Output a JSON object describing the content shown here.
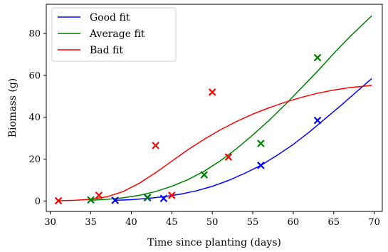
{
  "chart_data": {
    "type": "scatter",
    "title": "",
    "xlabel": "Time since planting (days)",
    "ylabel": "Biomass (g)",
    "xlim": [
      29.5,
      71
    ],
    "ylim": [
      -5,
      94
    ],
    "x_ticks": [
      30,
      35,
      40,
      45,
      50,
      55,
      60,
      65,
      70
    ],
    "y_ticks": [
      0,
      20,
      40,
      60,
      80
    ],
    "grid": false,
    "legend_position": "top-left",
    "series": [
      {
        "name": "Good fit",
        "color": "#0000ff",
        "curve": {
          "x": [
            38,
            40,
            42,
            44,
            46,
            48,
            50,
            52,
            54,
            56,
            58,
            60,
            62,
            64,
            66,
            68,
            69.7
          ],
          "y": [
            0.3,
            0.6,
            1.2,
            2.0,
            3.2,
            4.8,
            7.0,
            9.8,
            13.2,
            17.0,
            21.8,
            27.0,
            33.0,
            39.5,
            46.0,
            52.8,
            58.5
          ]
        },
        "points": {
          "x": [
            38,
            42,
            44,
            56,
            63
          ],
          "y": [
            0.3,
            1.5,
            1.2,
            17.0,
            38.5
          ]
        }
      },
      {
        "name": "Average fit",
        "color": "#008000",
        "curve": {
          "x": [
            35,
            37,
            39,
            41,
            43,
            45,
            47,
            49,
            51,
            53,
            55,
            57,
            59,
            61,
            63,
            65,
            67,
            69.7
          ],
          "y": [
            0.3,
            0.8,
            1.5,
            2.7,
            4.5,
            7.0,
            10.2,
            14.2,
            19.2,
            25.0,
            31.5,
            38.5,
            46.0,
            54.0,
            62.0,
            70.5,
            78.5,
            88.5
          ]
        },
        "points": {
          "x": [
            35,
            42,
            49,
            56,
            63
          ],
          "y": [
            0.5,
            1.7,
            12.5,
            27.5,
            68.5
          ]
        }
      },
      {
        "name": "Bad fit",
        "color": "#ff0000",
        "curve": {
          "x": [
            31,
            33,
            35,
            37,
            39,
            41,
            43,
            45,
            47,
            49,
            51,
            53,
            55,
            57,
            59,
            61,
            63,
            65,
            67,
            69.7
          ],
          "y": [
            0.1,
            0.3,
            0.8,
            2.0,
            4.5,
            8.5,
            13.5,
            19.0,
            24.5,
            29.5,
            34.0,
            38.0,
            41.5,
            44.5,
            47.2,
            49.5,
            51.5,
            53.0,
            54.2,
            55.2
          ]
        },
        "points": {
          "x": [
            31,
            36,
            43,
            45,
            50,
            52
          ],
          "y": [
            0.1,
            2.7,
            26.5,
            2.7,
            52.0,
            21.0
          ]
        }
      }
    ]
  }
}
